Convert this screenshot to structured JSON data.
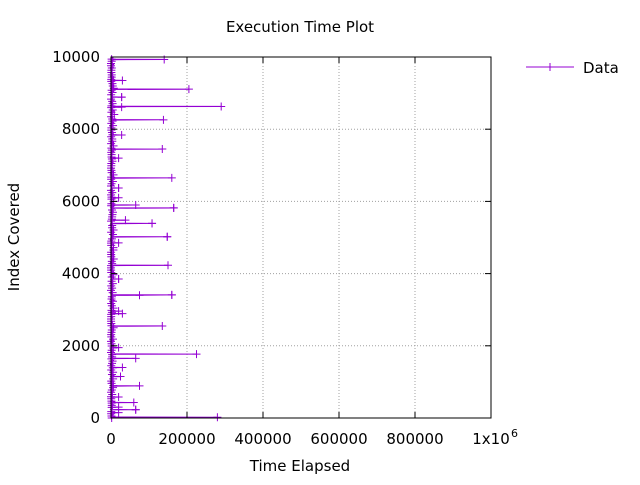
{
  "chart_data": {
    "type": "line",
    "title": "Execution Time Plot",
    "xlabel": "Time Elapsed",
    "ylabel": "Index Covered",
    "xlim": [
      0,
      1000000
    ],
    "ylim": [
      0,
      10000
    ],
    "x_ticks": [
      0,
      200000,
      400000,
      600000,
      800000,
      1000000
    ],
    "x_tick_labels": [
      "0",
      "200000",
      "400000",
      "600000",
      "800000",
      "1x10"
    ],
    "x_tick_exponent": "6",
    "y_ticks": [
      0,
      2000,
      4000,
      6000,
      8000,
      10000
    ],
    "y_tick_labels": [
      "0",
      "2000",
      "4000",
      "6000",
      "8000",
      "10000"
    ],
    "grid": true,
    "legend_position": "outside-top-right",
    "series": [
      {
        "name": "Data",
        "color": "#9400d3",
        "description_of_shape": "one point per index 0..9999; most near x=0 with occasional spikes",
        "spikes": [
          {
            "y": 9930,
            "x": 140000
          },
          {
            "y": 9350,
            "x": 30000
          },
          {
            "y": 9110,
            "x": 205000
          },
          {
            "y": 8890,
            "x": 28000
          },
          {
            "y": 8630,
            "x": 290000
          },
          {
            "y": 8610,
            "x": 28000
          },
          {
            "y": 8260,
            "x": 138000
          },
          {
            "y": 7840,
            "x": 28000
          },
          {
            "y": 7450,
            "x": 135000
          },
          {
            "y": 7200,
            "x": 20000
          },
          {
            "y": 6650,
            "x": 160000
          },
          {
            "y": 6370,
            "x": 20000
          },
          {
            "y": 6100,
            "x": 20000
          },
          {
            "y": 5900,
            "x": 65000
          },
          {
            "y": 5820,
            "x": 165000
          },
          {
            "y": 5480,
            "x": 38000
          },
          {
            "y": 5390,
            "x": 108000
          },
          {
            "y": 5020,
            "x": 148000
          },
          {
            "y": 4850,
            "x": 20000
          },
          {
            "y": 4230,
            "x": 150000
          },
          {
            "y": 3850,
            "x": 20000
          },
          {
            "y": 3410,
            "x": 160000
          },
          {
            "y": 3400,
            "x": 75000
          },
          {
            "y": 2960,
            "x": 20000
          },
          {
            "y": 2890,
            "x": 30000
          },
          {
            "y": 2550,
            "x": 135000
          },
          {
            "y": 1950,
            "x": 20000
          },
          {
            "y": 1770,
            "x": 225000
          },
          {
            "y": 1650,
            "x": 65000
          },
          {
            "y": 1400,
            "x": 30000
          },
          {
            "y": 1150,
            "x": 25000
          },
          {
            "y": 890,
            "x": 75000
          },
          {
            "y": 580,
            "x": 20000
          },
          {
            "y": 430,
            "x": 60000
          },
          {
            "y": 300,
            "x": 20000
          },
          {
            "y": 230,
            "x": 65000
          },
          {
            "y": 150,
            "x": 20000
          },
          {
            "y": 20,
            "x": 280000
          }
        ]
      }
    ]
  }
}
